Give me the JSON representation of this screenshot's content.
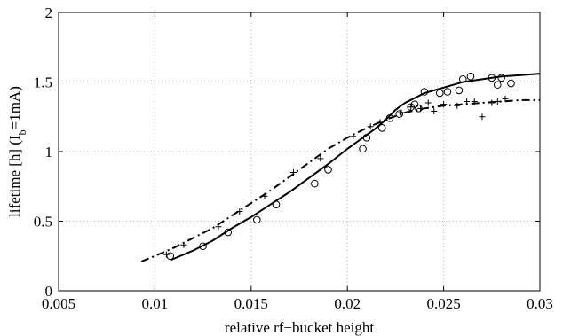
{
  "chart_data": {
    "type": "scatter",
    "title": "",
    "xlabel": "relative rf−bucket height",
    "ylabel_main": "lifetime [h] (I",
    "ylabel_sub": "b",
    "ylabel_tail": "=1mA)",
    "xlim": [
      0.005,
      0.03
    ],
    "ylim": [
      0,
      2
    ],
    "x_ticks": [
      0.005,
      0.01,
      0.015,
      0.02,
      0.025,
      0.03
    ],
    "x_tick_labels": [
      "0.005",
      "0.01",
      "0.015",
      "0.02",
      "0.025",
      "0.03"
    ],
    "y_ticks": [
      0,
      0.5,
      1,
      1.5,
      2
    ],
    "y_tick_labels": [
      "0",
      "0.5",
      "1",
      "1.5",
      "2"
    ],
    "grid": true,
    "legend": "none",
    "series": [
      {
        "marker": "circle",
        "style": "markers",
        "points": [
          [
            0.0108,
            0.25
          ],
          [
            0.0125,
            0.32
          ],
          [
            0.0138,
            0.42
          ],
          [
            0.0153,
            0.51
          ],
          [
            0.0163,
            0.62
          ],
          [
            0.0183,
            0.77
          ],
          [
            0.019,
            0.87
          ],
          [
            0.0208,
            1.02
          ],
          [
            0.021,
            1.1
          ],
          [
            0.0218,
            1.17
          ],
          [
            0.0222,
            1.24
          ],
          [
            0.0227,
            1.27
          ],
          [
            0.0233,
            1.32
          ],
          [
            0.0235,
            1.34
          ],
          [
            0.0237,
            1.31
          ],
          [
            0.024,
            1.43
          ],
          [
            0.0248,
            1.42
          ],
          [
            0.0252,
            1.43
          ],
          [
            0.0258,
            1.44
          ],
          [
            0.026,
            1.52
          ],
          [
            0.0264,
            1.54
          ],
          [
            0.0275,
            1.53
          ],
          [
            0.0278,
            1.48
          ],
          [
            0.028,
            1.53
          ],
          [
            0.0285,
            1.49
          ]
        ]
      },
      {
        "marker": "plus",
        "style": "markers",
        "points": [
          [
            0.0106,
            0.26
          ],
          [
            0.0115,
            0.33
          ],
          [
            0.0133,
            0.46
          ],
          [
            0.0144,
            0.57
          ],
          [
            0.0157,
            0.68
          ],
          [
            0.0172,
            0.85
          ],
          [
            0.0186,
            0.95
          ],
          [
            0.0203,
            1.11
          ],
          [
            0.0212,
            1.18
          ],
          [
            0.0217,
            1.21
          ],
          [
            0.0228,
            1.28
          ],
          [
            0.0233,
            1.32
          ],
          [
            0.0238,
            1.31
          ],
          [
            0.0242,
            1.35
          ],
          [
            0.0245,
            1.29
          ],
          [
            0.025,
            1.34
          ],
          [
            0.0257,
            1.33
          ],
          [
            0.0262,
            1.36
          ],
          [
            0.0266,
            1.36
          ],
          [
            0.027,
            1.25
          ],
          [
            0.0275,
            1.35
          ],
          [
            0.0278,
            1.36
          ],
          [
            0.0282,
            1.38
          ]
        ]
      },
      {
        "style": "solid-line",
        "points": [
          [
            0.0108,
            0.22
          ],
          [
            0.012,
            0.29
          ],
          [
            0.013,
            0.36
          ],
          [
            0.014,
            0.45
          ],
          [
            0.015,
            0.53
          ],
          [
            0.016,
            0.62
          ],
          [
            0.017,
            0.71
          ],
          [
            0.018,
            0.81
          ],
          [
            0.019,
            0.91
          ],
          [
            0.02,
            1.02
          ],
          [
            0.021,
            1.12
          ],
          [
            0.0215,
            1.17
          ],
          [
            0.022,
            1.23
          ],
          [
            0.0225,
            1.3
          ],
          [
            0.023,
            1.35
          ],
          [
            0.024,
            1.42
          ],
          [
            0.025,
            1.46
          ],
          [
            0.026,
            1.5
          ],
          [
            0.027,
            1.52
          ],
          [
            0.028,
            1.54
          ],
          [
            0.029,
            1.55
          ],
          [
            0.03,
            1.56
          ]
        ]
      },
      {
        "style": "dash-dot-line",
        "points": [
          [
            0.0093,
            0.21
          ],
          [
            0.01,
            0.25
          ],
          [
            0.011,
            0.31
          ],
          [
            0.012,
            0.38
          ],
          [
            0.013,
            0.45
          ],
          [
            0.014,
            0.54
          ],
          [
            0.015,
            0.63
          ],
          [
            0.016,
            0.72
          ],
          [
            0.017,
            0.82
          ],
          [
            0.018,
            0.92
          ],
          [
            0.019,
            1.02
          ],
          [
            0.02,
            1.1
          ],
          [
            0.021,
            1.17
          ],
          [
            0.022,
            1.23
          ],
          [
            0.023,
            1.28
          ],
          [
            0.024,
            1.31
          ],
          [
            0.025,
            1.33
          ],
          [
            0.026,
            1.34
          ],
          [
            0.027,
            1.35
          ],
          [
            0.028,
            1.36
          ],
          [
            0.029,
            1.37
          ],
          [
            0.03,
            1.37
          ]
        ]
      }
    ]
  }
}
